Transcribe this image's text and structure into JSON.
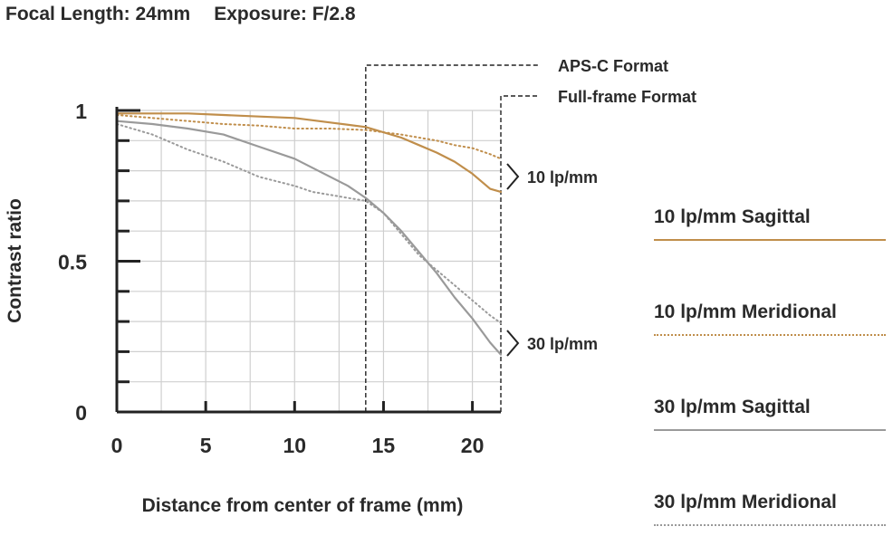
{
  "header": {
    "focal_length": "Focal Length: 24mm",
    "exposure": "Exposure: F/2.8"
  },
  "colors": {
    "sagittal_10": "#c08e4b",
    "meridional_10": "#c08e4b",
    "sagittal_30": "#9a9a9a",
    "meridional_30": "#9a9a9a",
    "axis": "#222222",
    "grid": "#cfcfcf"
  },
  "annotations": {
    "apsc": "APS-C Format",
    "fullframe": "Full-frame Format",
    "group_10": "10 lp/mm",
    "group_30": "30 lp/mm"
  },
  "legend": [
    {
      "label": "10 lp/mm Sagittal",
      "style": "solid",
      "color": "#c08e4b"
    },
    {
      "label": "10 lp/mm Meridional",
      "style": "dotted",
      "color": "#c08e4b"
    },
    {
      "label": "30 lp/mm Sagittal",
      "style": "solid",
      "color": "#9a9a9a"
    },
    {
      "label": "30 lp/mm Meridional",
      "style": "dotted",
      "color": "#9a9a9a"
    }
  ],
  "chart_data": {
    "type": "line",
    "xlabel": "Distance from center of frame (mm)",
    "ylabel": "Contrast ratio",
    "xlim": [
      0,
      21.6
    ],
    "ylim": [
      0,
      1
    ],
    "xticks": [
      0,
      5,
      10,
      15,
      20
    ],
    "yticks": [
      0,
      0.5,
      1
    ],
    "ytick_labels": [
      "0",
      "0.5",
      "1"
    ],
    "grid": true,
    "apsc_x": 14.0,
    "fullframe_x": 21.6,
    "series": [
      {
        "name": "10 lp/mm Sagittal",
        "style": "solid",
        "color": "#c08e4b",
        "x": [
          0,
          2,
          4,
          6,
          8,
          10,
          12,
          14,
          16,
          17,
          18,
          19,
          20,
          21,
          21.6
        ],
        "y": [
          0.99,
          0.99,
          0.99,
          0.985,
          0.98,
          0.975,
          0.96,
          0.945,
          0.91,
          0.885,
          0.86,
          0.83,
          0.79,
          0.74,
          0.73
        ]
      },
      {
        "name": "10 lp/mm Meridional",
        "style": "dotted",
        "color": "#c08e4b",
        "x": [
          0,
          2,
          4,
          6,
          8,
          10,
          12,
          14,
          16,
          17,
          18,
          19,
          20,
          21,
          21.6
        ],
        "y": [
          0.985,
          0.975,
          0.965,
          0.955,
          0.95,
          0.94,
          0.94,
          0.935,
          0.92,
          0.91,
          0.9,
          0.885,
          0.875,
          0.855,
          0.84
        ]
      },
      {
        "name": "30 lp/mm Sagittal",
        "style": "solid",
        "color": "#9a9a9a",
        "x": [
          0,
          2,
          4,
          6,
          8,
          10,
          12,
          13,
          14,
          15,
          16,
          17,
          18,
          19,
          20,
          21,
          21.6
        ],
        "y": [
          0.965,
          0.955,
          0.94,
          0.92,
          0.88,
          0.84,
          0.78,
          0.75,
          0.71,
          0.66,
          0.6,
          0.53,
          0.46,
          0.38,
          0.31,
          0.23,
          0.19
        ]
      },
      {
        "name": "30 lp/mm Meridional",
        "style": "dotted",
        "color": "#9a9a9a",
        "x": [
          0,
          2,
          4,
          6,
          8,
          10,
          11,
          12,
          13,
          14,
          15,
          16,
          17,
          18,
          19,
          20,
          21,
          21.6
        ],
        "y": [
          0.955,
          0.92,
          0.87,
          0.83,
          0.78,
          0.75,
          0.73,
          0.72,
          0.71,
          0.7,
          0.66,
          0.59,
          0.52,
          0.47,
          0.42,
          0.37,
          0.32,
          0.295
        ]
      }
    ]
  }
}
